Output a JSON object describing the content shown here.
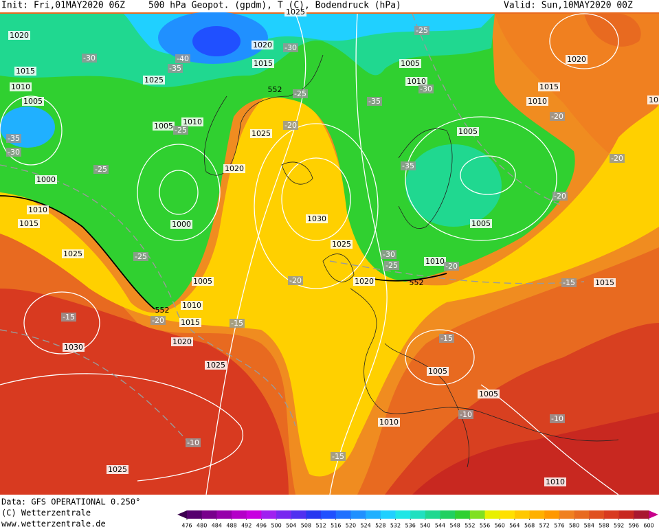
{
  "header": {
    "init": "Init: Fri,01MAY2020 06Z",
    "fields": "500 hPa Geopot. (gpdm), T (C), Bodendruck (hPa)",
    "valid": "Valid: Sun,10MAY2020 00Z"
  },
  "footer": {
    "data": "Data: GFS OPERATIONAL 0.250°",
    "copyright": "(C) Wetterzentrale",
    "url": "www.wetterzentrale.de"
  },
  "colorbar": {
    "values": [
      476,
      480,
      484,
      488,
      492,
      496,
      500,
      504,
      508,
      512,
      516,
      520,
      524,
      528,
      532,
      536,
      540,
      544,
      548,
      552,
      556,
      560,
      564,
      568,
      572,
      576,
      580,
      584,
      588,
      592,
      596,
      600
    ],
    "colors": [
      "#3c0050",
      "#55006e",
      "#78008c",
      "#9600aa",
      "#b400c8",
      "#c800e0",
      "#a020f0",
      "#7828f0",
      "#5030f0",
      "#2838f0",
      "#2050ff",
      "#2070ff",
      "#2090ff",
      "#20b0ff",
      "#20d0ff",
      "#20e6e6",
      "#20e0c0",
      "#20d890",
      "#20d060",
      "#30d030",
      "#80e020",
      "#e8f000",
      "#ffe000",
      "#ffc800",
      "#ffb000",
      "#ff9800",
      "#f08020",
      "#e86a20",
      "#e05020",
      "#d83a20",
      "#c82820",
      "#a81830",
      "#c8008c"
    ]
  },
  "isobar_labels": [
    "1020",
    "1015",
    "1010",
    "1005",
    "1025",
    "1005",
    "1010",
    "1020",
    "1015",
    "1025",
    "1020",
    "1000",
    "1010",
    "1015",
    "1000",
    "1030",
    "1025",
    "1025",
    "1005",
    "1010",
    "1015",
    "1020",
    "1030",
    "1025",
    "1020",
    "1005",
    "1010",
    "1005",
    "1005",
    "1010",
    "1020",
    "1015",
    "1010",
    "1015",
    "1005",
    "1005",
    "1010",
    "1025",
    "1010",
    "1025",
    "10"
  ],
  "temperature_labels": [
    "-30",
    "-40",
    "-35",
    "-30",
    "-25",
    "-30",
    "-35",
    "-25",
    "-20",
    "-25",
    "-35",
    "-30",
    "-25",
    "-35",
    "-20",
    "-20",
    "-20",
    "-25",
    "-30",
    "-25",
    "-20",
    "-20",
    "-15",
    "-15",
    "-20",
    "-15",
    "-15",
    "-10",
    "-10",
    "-10",
    "-15"
  ],
  "height_labels": [
    "552",
    "552",
    "552"
  ]
}
